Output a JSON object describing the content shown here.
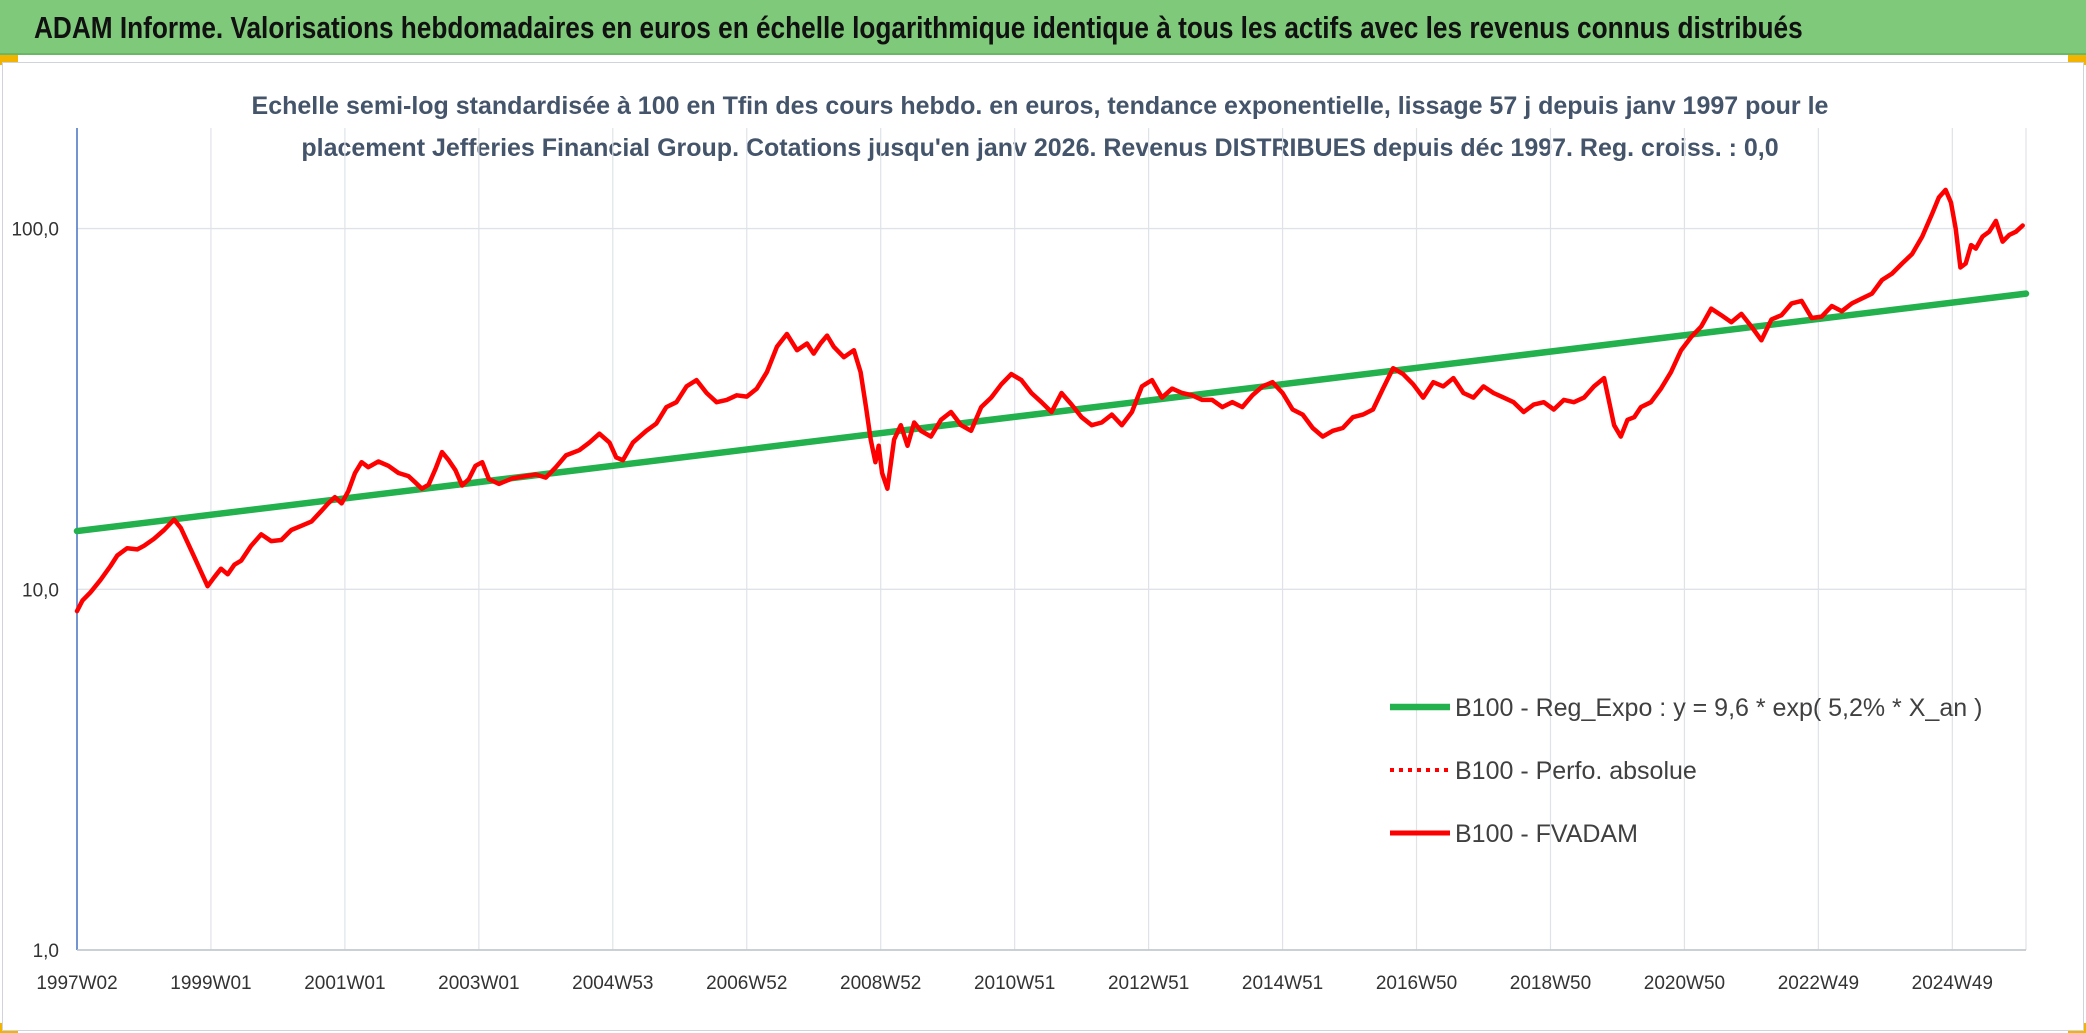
{
  "banner": {
    "title": "ADAM Informe. Valorisations hebdomadaires en euros en échelle logarithmique identique à tous les actifs avec les revenus connus distribués"
  },
  "colors": {
    "banner_bg": "#7fc97a",
    "accent_corner": "#f3b400",
    "series_fvadam": "#ff0000",
    "series_regression": "#22b14c",
    "series_perf": "#ff0000",
    "subtitle": "#44546a"
  },
  "chart_data": {
    "type": "line",
    "title_line1": "Echelle semi-log standardisée à 100 en Tfin des cours hebdo. en euros, tendance exponentielle, lissage 57 j depuis janv 1997 pour le",
    "title_line2": "placement Jefferies Financial Group. Cotations jusqu'en janv 2026. Revenus DISTRIBUES depuis déc 1997. Reg. croiss. : 0,0",
    "y_scale": "log",
    "ylim": [
      1,
      190
    ],
    "y_ticks": [
      {
        "value": 1,
        "label": "1,0"
      },
      {
        "value": 10,
        "label": "10,0"
      },
      {
        "value": 100,
        "label": "100,0"
      }
    ],
    "xlim": [
      1997.0,
      2026.1
    ],
    "x_ticks": [
      {
        "value": 1997.0,
        "label": "1997W02"
      },
      {
        "value": 1999.0,
        "label": "1999W01"
      },
      {
        "value": 2001.0,
        "label": "2001W01"
      },
      {
        "value": 2003.0,
        "label": "2003W01"
      },
      {
        "value": 2005.0,
        "label": "2004W53"
      },
      {
        "value": 2007.0,
        "label": "2006W52"
      },
      {
        "value": 2009.0,
        "label": "2008W52"
      },
      {
        "value": 2011.0,
        "label": "2010W51"
      },
      {
        "value": 2013.0,
        "label": "2012W51"
      },
      {
        "value": 2015.0,
        "label": "2014W51"
      },
      {
        "value": 2017.0,
        "label": "2016W50"
      },
      {
        "value": 2019.0,
        "label": "2018W50"
      },
      {
        "value": 2021.0,
        "label": "2020W50"
      },
      {
        "value": 2023.0,
        "label": "2022W49"
      },
      {
        "value": 2025.0,
        "label": "2024W49"
      }
    ],
    "legend": [
      {
        "label": "B100 - Reg_Expo : y = 9,6 * exp( 5,2% *  X_an )",
        "style": "solid-thick",
        "color": "#22b14c"
      },
      {
        "label": "B100 - Perfo. absolue",
        "style": "dotted",
        "color": "#ff0000"
      },
      {
        "label": "B100 - FVADAM",
        "style": "solid",
        "color": "#ff0000"
      }
    ],
    "series": [
      {
        "name": "B100 - Reg_Expo : y = 9,6 * exp( 5,2% *  X_an )",
        "x": [
          1997.0,
          2026.1
        ],
        "values": [
          14.5,
          66.0
        ]
      },
      {
        "name": "B100 - FVADAM",
        "x": [
          1997.0,
          1997.08,
          1997.2,
          1997.35,
          1997.5,
          1997.6,
          1997.75,
          1997.9,
          1998.0,
          1998.15,
          1998.3,
          1998.45,
          1998.55,
          1998.65,
          1998.75,
          1998.85,
          1998.95,
          1999.05,
          1999.15,
          1999.25,
          1999.35,
          1999.45,
          1999.6,
          1999.75,
          1999.9,
          2000.05,
          2000.2,
          2000.35,
          2000.5,
          2000.65,
          2000.75,
          2000.85,
          2000.95,
          2001.05,
          2001.15,
          2001.25,
          2001.35,
          2001.5,
          2001.65,
          2001.8,
          2001.95,
          2002.05,
          2002.15,
          2002.25,
          2002.35,
          2002.45,
          2002.55,
          2002.65,
          2002.75,
          2002.85,
          2002.95,
          2003.05,
          2003.15,
          2003.3,
          2003.5,
          2003.7,
          2003.85,
          2004.0,
          2004.15,
          2004.3,
          2004.5,
          2004.65,
          2004.8,
          2004.95,
          2005.05,
          2005.15,
          2005.3,
          2005.5,
          2005.65,
          2005.8,
          2005.95,
          2006.1,
          2006.25,
          2006.4,
          2006.55,
          2006.7,
          2006.85,
          2007.0,
          2007.15,
          2007.3,
          2007.45,
          2007.6,
          2007.75,
          2007.9,
          2008.0,
          2008.1,
          2008.2,
          2008.3,
          2008.45,
          2008.6,
          2008.7,
          2008.78,
          2008.85,
          2008.92,
          2008.97,
          2009.02,
          2009.1,
          2009.2,
          2009.3,
          2009.4,
          2009.5,
          2009.6,
          2009.75,
          2009.9,
          2010.05,
          2010.2,
          2010.35,
          2010.5,
          2010.65,
          2010.8,
          2010.95,
          2011.1,
          2011.25,
          2011.4,
          2011.55,
          2011.7,
          2011.85,
          2012.0,
          2012.15,
          2012.3,
          2012.45,
          2012.6,
          2012.75,
          2012.9,
          2013.05,
          2013.2,
          2013.35,
          2013.5,
          2013.65,
          2013.8,
          2013.95,
          2014.1,
          2014.25,
          2014.4,
          2014.55,
          2014.7,
          2014.85,
          2015.0,
          2015.15,
          2015.3,
          2015.45,
          2015.6,
          2015.75,
          2015.9,
          2016.05,
          2016.2,
          2016.35,
          2016.5,
          2016.65,
          2016.8,
          2016.95,
          2017.1,
          2017.25,
          2017.4,
          2017.55,
          2017.7,
          2017.85,
          2018.0,
          2018.15,
          2018.3,
          2018.45,
          2018.6,
          2018.75,
          2018.9,
          2019.05,
          2019.2,
          2019.35,
          2019.5,
          2019.65,
          2019.8,
          2019.95,
          2020.05,
          2020.15,
          2020.25,
          2020.35,
          2020.5,
          2020.65,
          2020.8,
          2020.95,
          2021.1,
          2021.25,
          2021.4,
          2021.55,
          2021.7,
          2021.85,
          2022.0,
          2022.15,
          2022.3,
          2022.45,
          2022.6,
          2022.75,
          2022.9,
          2023.05,
          2023.2,
          2023.35,
          2023.5,
          2023.65,
          2023.8,
          2023.95,
          2024.1,
          2024.25,
          2024.4,
          2024.55,
          2024.7,
          2024.8,
          2024.9,
          2024.98,
          2025.05,
          2025.12,
          2025.2,
          2025.28,
          2025.35,
          2025.45,
          2025.55,
          2025.65,
          2025.75,
          2025.85,
          2025.95,
          2026.05
        ],
        "values": [
          8.7,
          9.3,
          9.8,
          10.6,
          11.6,
          12.4,
          13.0,
          12.9,
          13.2,
          13.8,
          14.6,
          15.6,
          14.8,
          13.5,
          12.3,
          11.2,
          10.2,
          10.8,
          11.4,
          11.0,
          11.7,
          12.0,
          13.2,
          14.2,
          13.6,
          13.7,
          14.6,
          15.0,
          15.4,
          16.5,
          17.3,
          18.0,
          17.3,
          18.7,
          21.0,
          22.5,
          21.8,
          22.6,
          22.0,
          21.0,
          20.6,
          19.8,
          19.0,
          19.5,
          21.5,
          24.0,
          22.8,
          21.4,
          19.4,
          20.2,
          22.0,
          22.5,
          20.2,
          19.6,
          20.3,
          20.6,
          20.8,
          20.4,
          21.8,
          23.5,
          24.3,
          25.5,
          27.0,
          25.5,
          23.2,
          22.8,
          25.5,
          27.5,
          28.8,
          32.0,
          33.0,
          36.5,
          38.0,
          35.0,
          33.0,
          33.5,
          34.5,
          34.2,
          36.0,
          40.0,
          47.0,
          51.0,
          46.0,
          48.0,
          45.0,
          48.0,
          50.5,
          47.0,
          44.0,
          46.0,
          40.0,
          32.0,
          26.0,
          22.5,
          25.0,
          21.0,
          19.0,
          26.0,
          28.5,
          25.0,
          29.0,
          27.5,
          26.5,
          29.5,
          31.0,
          28.5,
          27.5,
          32.0,
          34.0,
          37.0,
          39.5,
          38.0,
          35.0,
          33.0,
          31.0,
          35.0,
          32.5,
          30.0,
          28.5,
          29.0,
          30.5,
          28.5,
          31.0,
          36.5,
          38.0,
          34.0,
          36.0,
          35.0,
          34.5,
          33.5,
          33.5,
          32.0,
          33.0,
          32.0,
          34.5,
          36.5,
          37.5,
          35.0,
          31.5,
          30.5,
          28.0,
          26.5,
          27.5,
          28.0,
          30.0,
          30.5,
          31.5,
          36.0,
          41.0,
          39.5,
          37.0,
          34.0,
          37.5,
          36.5,
          38.5,
          35.0,
          34.0,
          36.5,
          35.0,
          34.0,
          33.0,
          31.0,
          32.5,
          33.0,
          31.5,
          33.5,
          33.0,
          34.0,
          36.5,
          38.5,
          28.5,
          26.5,
          29.5,
          30.0,
          32.0,
          33.0,
          36.0,
          40.0,
          46.0,
          50.0,
          53.5,
          60.0,
          57.5,
          55.0,
          58.0,
          53.5,
          49.0,
          56.0,
          57.5,
          62.0,
          63.0,
          56.5,
          57.0,
          61.0,
          59.0,
          62.0,
          64.0,
          66.0,
          72.0,
          75.0,
          80.0,
          85.0,
          95.0,
          110.0,
          122.0,
          128.0,
          118.0,
          100.0,
          78.0,
          80.0,
          90.0,
          88.0,
          95.0,
          98.0,
          105.0,
          92.0,
          96.0,
          98.0,
          102.0
        ]
      },
      {
        "name": "B100 - Perfo. absolue",
        "x": [],
        "values": []
      }
    ]
  }
}
